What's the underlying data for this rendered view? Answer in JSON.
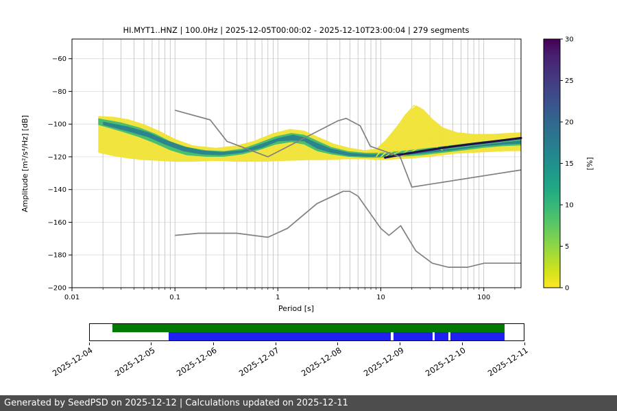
{
  "chart_data": {
    "type": "heatmap",
    "title": "HI.MYT1..HNZ | 100.0Hz | 2025-12-05T00:00:02 - 2025-12-10T23:00:04 | 279 segments",
    "xlabel": "Period [s]",
    "ylabel": "Amplitude [m²/s⁴/Hz] [dB]",
    "xscale": "log",
    "xlim": [
      0.01,
      230
    ],
    "ylim": [
      -200,
      -48
    ],
    "x_ticks": [
      0.01,
      0.1,
      1,
      10,
      100
    ],
    "x_tick_labels": [
      "0.01",
      "0.1",
      "1",
      "10",
      "100"
    ],
    "y_ticks": [
      -60,
      -80,
      -100,
      -120,
      -140,
      -160,
      -180,
      -200
    ],
    "grid": true,
    "legend": "none",
    "colorbar": {
      "label": "[%]",
      "min": 0,
      "max": 30,
      "ticks": [
        0,
        5,
        10,
        15,
        20,
        25,
        30
      ],
      "colors_low_to_high": [
        "#fde725",
        "#d2e21b",
        "#a5db36",
        "#7ad151",
        "#54c568",
        "#35b779",
        "#22a884",
        "#1f988b",
        "#23888e",
        "#2a788e",
        "#31688e",
        "#39568c",
        "#414487",
        "#46327e",
        "#481f70",
        "#440154"
      ]
    },
    "noise_models": {
      "color": "#808080",
      "nhnm": [
        [
          0.1,
          -91.5
        ],
        [
          0.22,
          -97.4
        ],
        [
          0.32,
          -110.5
        ],
        [
          0.8,
          -120.0
        ],
        [
          3.8,
          -98.1
        ],
        [
          4.6,
          -96.5
        ],
        [
          6.3,
          -101.0
        ],
        [
          7.9,
          -113.5
        ],
        [
          15.4,
          -120.0
        ],
        [
          20.0,
          -138.5
        ],
        [
          230,
          -128.0
        ]
      ],
      "nlnm": [
        [
          0.1,
          -168.0
        ],
        [
          0.17,
          -166.7
        ],
        [
          0.4,
          -166.7
        ],
        [
          0.8,
          -169.2
        ],
        [
          1.24,
          -163.7
        ],
        [
          2.4,
          -148.6
        ],
        [
          4.3,
          -141.1
        ],
        [
          5.0,
          -141.1
        ],
        [
          6.0,
          -144.0
        ],
        [
          10.0,
          -163.8
        ],
        [
          12.0,
          -168.0
        ],
        [
          15.6,
          -162.1
        ],
        [
          21.9,
          -177.5
        ],
        [
          31.6,
          -185.0
        ],
        [
          45.0,
          -187.5
        ],
        [
          70.0,
          -187.5
        ],
        [
          101.0,
          -185.0
        ],
        [
          230,
          -185.0
        ]
      ]
    },
    "density_bands": [
      {
        "name": "outer-yellow",
        "color": "#f1e335",
        "opacity": 0.95,
        "upper": [
          [
            0.018,
            -95
          ],
          [
            0.025,
            -95.5
          ],
          [
            0.035,
            -97
          ],
          [
            0.05,
            -100
          ],
          [
            0.07,
            -104
          ],
          [
            0.1,
            -109
          ],
          [
            0.15,
            -113
          ],
          [
            0.25,
            -114.5
          ],
          [
            0.4,
            -113
          ],
          [
            0.6,
            -110
          ],
          [
            0.9,
            -105.5
          ],
          [
            1.3,
            -103
          ],
          [
            1.8,
            -104
          ],
          [
            2.5,
            -108
          ],
          [
            3.5,
            -112
          ],
          [
            5,
            -114.5
          ],
          [
            7,
            -116
          ],
          [
            9,
            -115
          ],
          [
            11,
            -110
          ],
          [
            14,
            -102
          ],
          [
            18,
            -93
          ],
          [
            22,
            -88.5
          ],
          [
            26,
            -91
          ],
          [
            32,
            -97
          ],
          [
            40,
            -102
          ],
          [
            55,
            -105
          ],
          [
            80,
            -106
          ],
          [
            120,
            -106
          ],
          [
            170,
            -105.5
          ],
          [
            230,
            -105
          ]
        ],
        "lower": [
          [
            230,
            -116.5
          ],
          [
            170,
            -116.5
          ],
          [
            120,
            -117
          ],
          [
            80,
            -117.5
          ],
          [
            55,
            -118
          ],
          [
            40,
            -119
          ],
          [
            30,
            -120
          ],
          [
            20,
            -121
          ],
          [
            14,
            -121.5
          ],
          [
            10,
            -122
          ],
          [
            7,
            -121.5
          ],
          [
            4.5,
            -121.5
          ],
          [
            3,
            -122
          ],
          [
            2,
            -122
          ],
          [
            1.2,
            -122.5
          ],
          [
            0.7,
            -123
          ],
          [
            0.4,
            -123
          ],
          [
            0.25,
            -122.5
          ],
          [
            0.15,
            -123
          ],
          [
            0.1,
            -123
          ],
          [
            0.07,
            -122.5
          ],
          [
            0.05,
            -122
          ],
          [
            0.035,
            -121
          ],
          [
            0.025,
            -119.5
          ],
          [
            0.018,
            -117.5
          ]
        ]
      },
      {
        "name": "mid-green",
        "color": "#3fbc73",
        "opacity": 0.95,
        "upper": [
          [
            0.018,
            -96.5
          ],
          [
            0.03,
            -99
          ],
          [
            0.045,
            -102
          ],
          [
            0.065,
            -106
          ],
          [
            0.09,
            -110.5
          ],
          [
            0.13,
            -114
          ],
          [
            0.2,
            -116
          ],
          [
            0.3,
            -116.5
          ],
          [
            0.45,
            -115
          ],
          [
            0.65,
            -111.5
          ],
          [
            0.95,
            -107.5
          ],
          [
            1.35,
            -105.5
          ],
          [
            1.8,
            -106.5
          ],
          [
            2.4,
            -110
          ],
          [
            3.3,
            -114
          ],
          [
            4.8,
            -116.5
          ],
          [
            7,
            -117.5
          ],
          [
            10,
            -117.5
          ],
          [
            15,
            -116.5
          ],
          [
            25,
            -115
          ],
          [
            40,
            -113.5
          ],
          [
            65,
            -112
          ],
          [
            100,
            -110.5
          ],
          [
            150,
            -109.5
          ],
          [
            230,
            -108.5
          ]
        ],
        "lower": [
          [
            230,
            -113
          ],
          [
            150,
            -113.5
          ],
          [
            100,
            -114.5
          ],
          [
            65,
            -116
          ],
          [
            40,
            -117.5
          ],
          [
            25,
            -119
          ],
          [
            15,
            -120
          ],
          [
            10,
            -120.5
          ],
          [
            7,
            -120.5
          ],
          [
            4.8,
            -120
          ],
          [
            3.3,
            -118.5
          ],
          [
            2.4,
            -116.5
          ],
          [
            1.8,
            -112.5
          ],
          [
            1.35,
            -111
          ],
          [
            0.95,
            -112.5
          ],
          [
            0.65,
            -116
          ],
          [
            0.45,
            -118.5
          ],
          [
            0.3,
            -120
          ],
          [
            0.2,
            -120
          ],
          [
            0.13,
            -119
          ],
          [
            0.09,
            -116
          ],
          [
            0.065,
            -112
          ],
          [
            0.045,
            -108
          ],
          [
            0.03,
            -104.5
          ],
          [
            0.018,
            -100.5
          ]
        ]
      },
      {
        "name": "core-teal",
        "color": "#2a7f8e",
        "opacity": 0.92,
        "upper": [
          [
            0.02,
            -98.5
          ],
          [
            0.035,
            -101.5
          ],
          [
            0.055,
            -105
          ],
          [
            0.08,
            -109.5
          ],
          [
            0.12,
            -113.5
          ],
          [
            0.18,
            -116
          ],
          [
            0.28,
            -117
          ],
          [
            0.45,
            -116
          ],
          [
            0.7,
            -112
          ],
          [
            1.0,
            -108.5
          ],
          [
            1.4,
            -106.5
          ],
          [
            1.8,
            -108
          ],
          [
            2.4,
            -111.5
          ],
          [
            3.3,
            -115
          ],
          [
            5,
            -117.5
          ],
          [
            8,
            -118.5
          ],
          [
            13,
            -118
          ],
          [
            25,
            -116.5
          ],
          [
            50,
            -115
          ],
          [
            100,
            -112.5
          ],
          [
            160,
            -111
          ],
          [
            230,
            -110
          ]
        ],
        "lower": [
          [
            230,
            -112
          ],
          [
            160,
            -112.5
          ],
          [
            100,
            -113.5
          ],
          [
            50,
            -116
          ],
          [
            25,
            -118
          ],
          [
            13,
            -119.5
          ],
          [
            8,
            -120
          ],
          [
            5,
            -119.5
          ],
          [
            3.3,
            -117.5
          ],
          [
            2.4,
            -115
          ],
          [
            1.8,
            -110.5
          ],
          [
            1.4,
            -110
          ],
          [
            1.0,
            -110.5
          ],
          [
            0.7,
            -114.5
          ],
          [
            0.45,
            -117.5
          ],
          [
            0.28,
            -119
          ],
          [
            0.18,
            -118.5
          ],
          [
            0.12,
            -116.5
          ],
          [
            0.08,
            -112.5
          ],
          [
            0.055,
            -108
          ],
          [
            0.035,
            -104.5
          ],
          [
            0.02,
            -100.5
          ]
        ]
      }
    ],
    "fan_lines": {
      "color": "#f1e335",
      "lines": [
        [
          [
            9,
            -120
          ],
          [
            13,
            -106
          ],
          [
            17,
            -95
          ],
          [
            21,
            -88.5
          ],
          [
            26,
            -94
          ],
          [
            33,
            -102
          ],
          [
            45,
            -108
          ],
          [
            60,
            -111
          ]
        ],
        [
          [
            9,
            -120
          ],
          [
            13,
            -109
          ],
          [
            18,
            -97
          ],
          [
            22,
            -92
          ],
          [
            28,
            -100
          ],
          [
            38,
            -107
          ],
          [
            55,
            -111
          ]
        ],
        [
          [
            10,
            -120
          ],
          [
            14,
            -111
          ],
          [
            19,
            -100
          ],
          [
            23,
            -95.5
          ],
          [
            30,
            -104
          ],
          [
            42,
            -110
          ]
        ],
        [
          [
            10,
            -120
          ],
          [
            14,
            -113
          ],
          [
            20,
            -103
          ],
          [
            24,
            -99
          ],
          [
            31,
            -107
          ],
          [
            45,
            -112
          ]
        ],
        [
          [
            11,
            -120
          ],
          [
            15,
            -114
          ],
          [
            20,
            -106
          ],
          [
            25,
            -102.5
          ],
          [
            32,
            -110
          ],
          [
            45,
            -113.5
          ]
        ],
        [
          [
            11,
            -121
          ],
          [
            16,
            -116
          ],
          [
            21,
            -109
          ],
          [
            26,
            -106
          ],
          [
            34,
            -112.5
          ]
        ],
        [
          [
            12,
            -121
          ],
          [
            17,
            -117.5
          ],
          [
            22,
            -112
          ],
          [
            28,
            -109.5
          ],
          [
            36,
            -114.5
          ]
        ],
        [
          [
            13,
            -121
          ],
          [
            18,
            -118.5
          ],
          [
            24,
            -114
          ],
          [
            30,
            -112
          ],
          [
            40,
            -116
          ]
        ]
      ]
    },
    "mode_line": {
      "color": "#22104a",
      "width": 3.2,
      "points": [
        [
          11,
          -120.5
        ],
        [
          16,
          -118.5
        ],
        [
          25,
          -116.5
        ],
        [
          40,
          -114.5
        ],
        [
          70,
          -112.5
        ],
        [
          110,
          -111
        ],
        [
          170,
          -109.5
        ],
        [
          230,
          -108.5
        ]
      ]
    }
  },
  "timeline": {
    "rows": [
      {
        "name": "availability",
        "color": "#007a00",
        "segments": [
          [
            0.052,
            0.956
          ]
        ]
      },
      {
        "name": "coverage",
        "color": "#2020ee",
        "segments": [
          [
            0.181,
            0.694
          ],
          [
            0.7,
            0.79
          ],
          [
            0.795,
            0.826
          ],
          [
            0.831,
            0.956
          ]
        ]
      }
    ],
    "tick_labels": [
      "2025-12-04",
      "2025-12-05",
      "2025-12-06",
      "2025-12-07",
      "2025-12-08",
      "2025-12-09",
      "2025-12-10",
      "2025-12-11"
    ]
  },
  "footer": {
    "text": "Generated by SeedPSD on 2025-12-12 | Calculations updated on 2025-12-11"
  },
  "colors": {
    "footer_bg": "#4d4d4d",
    "footer_text": "#ffffff",
    "grid_v": "#bdbdbd",
    "grid_h": "#dcdcdc",
    "frame": "#000000"
  }
}
